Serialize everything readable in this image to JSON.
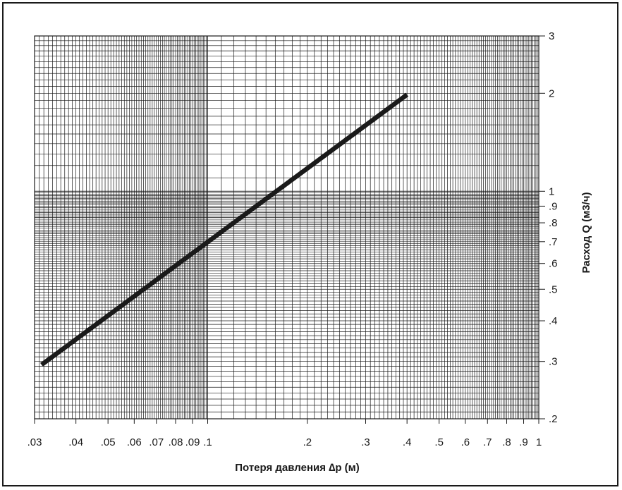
{
  "chart_data": {
    "type": "line",
    "title": "",
    "xlabel": "Потеря давления ∆p (м)",
    "ylabel": "Расход Q (м3/ч)",
    "x_scale": "log",
    "y_scale": "log",
    "xlim": [
      0.03,
      1
    ],
    "ylim": [
      0.2,
      3
    ],
    "grid": true,
    "x_ticks": [
      {
        "value": 0.03,
        "label": ".03"
      },
      {
        "value": 0.04,
        "label": ".04"
      },
      {
        "value": 0.05,
        "label": ".05"
      },
      {
        "value": 0.06,
        "label": ".06"
      },
      {
        "value": 0.07,
        "label": ".07"
      },
      {
        "value": 0.08,
        "label": ".08"
      },
      {
        "value": 0.09,
        "label": ".09"
      },
      {
        "value": 0.1,
        "label": ".1"
      },
      {
        "value": 0.2,
        "label": ".2"
      },
      {
        "value": 0.3,
        "label": ".3"
      },
      {
        "value": 0.4,
        "label": ".4"
      },
      {
        "value": 0.5,
        "label": ".5"
      },
      {
        "value": 0.6,
        "label": ".6"
      },
      {
        "value": 0.7,
        "label": ".7"
      },
      {
        "value": 0.8,
        "label": ".8"
      },
      {
        "value": 0.9,
        "label": ".9"
      },
      {
        "value": 1,
        "label": "1"
      }
    ],
    "y_ticks": [
      {
        "value": 0.2,
        "label": ".2"
      },
      {
        "value": 0.3,
        "label": ".3"
      },
      {
        "value": 0.4,
        "label": ".4"
      },
      {
        "value": 0.5,
        "label": ".5"
      },
      {
        "value": 0.6,
        "label": ".6"
      },
      {
        "value": 0.7,
        "label": ".7"
      },
      {
        "value": 0.8,
        "label": ".8"
      },
      {
        "value": 0.9,
        "label": ".9"
      },
      {
        "value": 1,
        "label": "1"
      },
      {
        "value": 2,
        "label": "2"
      },
      {
        "value": 3,
        "label": "3"
      }
    ],
    "series": [
      {
        "x": [
          0.0315,
          0.4
        ],
        "y": [
          0.293,
          1.98
        ]
      }
    ]
  },
  "colors": {
    "ink": "#1a1a1a",
    "background": "#ffffff"
  }
}
